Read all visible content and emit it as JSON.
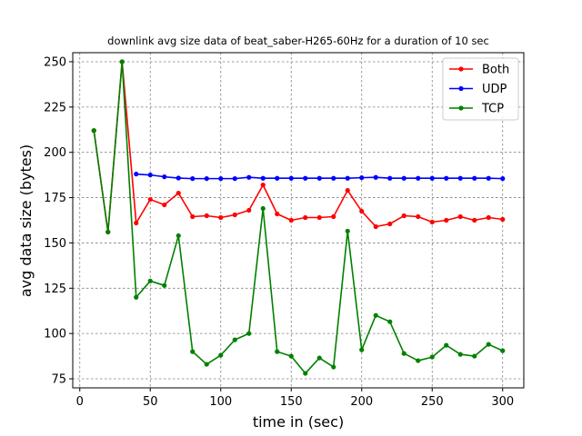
{
  "chart_data": {
    "type": "line",
    "title": "downlink avg size data of beat_saber-H265-60Hz for a duration of 10 sec",
    "xlabel": "time in (sec)",
    "ylabel": "avg data size (bytes)",
    "xlim": [
      -5,
      315
    ],
    "ylim": [
      70,
      255
    ],
    "xticks": [
      0,
      50,
      100,
      150,
      200,
      250,
      300
    ],
    "yticks": [
      75,
      100,
      125,
      150,
      175,
      200,
      225,
      250
    ],
    "grid": true,
    "legend_position": "top-right",
    "series": [
      {
        "name": "Both",
        "color": "#ff0000",
        "x": [
          10,
          20,
          30,
          40,
          50,
          60,
          70,
          80,
          90,
          100,
          110,
          120,
          130,
          140,
          150,
          160,
          170,
          180,
          190,
          200,
          210,
          220,
          230,
          240,
          250,
          260,
          270,
          280,
          290,
          300
        ],
        "y": [
          212,
          156,
          250,
          161,
          174,
          171,
          177.5,
          164.5,
          165,
          164,
          165.5,
          168,
          182,
          166,
          162.5,
          164,
          164,
          164.5,
          179,
          167.5,
          159,
          160.5,
          165,
          164.5,
          161.5,
          162.5,
          164.5,
          162.5,
          164,
          163
        ]
      },
      {
        "name": "UDP",
        "color": "#0000ff",
        "x": [
          40,
          50,
          60,
          70,
          80,
          90,
          100,
          110,
          120,
          130,
          140,
          150,
          160,
          170,
          180,
          190,
          200,
          210,
          220,
          230,
          240,
          250,
          260,
          270,
          280,
          290,
          300
        ],
        "y": [
          188,
          187.5,
          186.5,
          185.8,
          185.5,
          185.5,
          185.5,
          185.5,
          186.2,
          185.7,
          185.7,
          185.7,
          185.7,
          185.7,
          185.7,
          185.7,
          186,
          186.2,
          185.7,
          185.7,
          185.7,
          185.7,
          185.7,
          185.7,
          185.7,
          185.7,
          185.5
        ]
      },
      {
        "name": "TCP",
        "color": "#008000",
        "x": [
          10,
          20,
          30,
          40,
          50,
          60,
          70,
          80,
          90,
          100,
          110,
          120,
          130,
          140,
          150,
          160,
          170,
          180,
          190,
          200,
          210,
          220,
          230,
          240,
          250,
          260,
          270,
          280,
          290,
          300
        ],
        "y": [
          212,
          156,
          250,
          120,
          129,
          126.5,
          154,
          90,
          83,
          88,
          96.5,
          100,
          169,
          90,
          87.5,
          78,
          86.5,
          81.5,
          156.5,
          91,
          110,
          106.5,
          89,
          85,
          87,
          93.5,
          88.5,
          87.5,
          94,
          90.5
        ]
      }
    ]
  }
}
